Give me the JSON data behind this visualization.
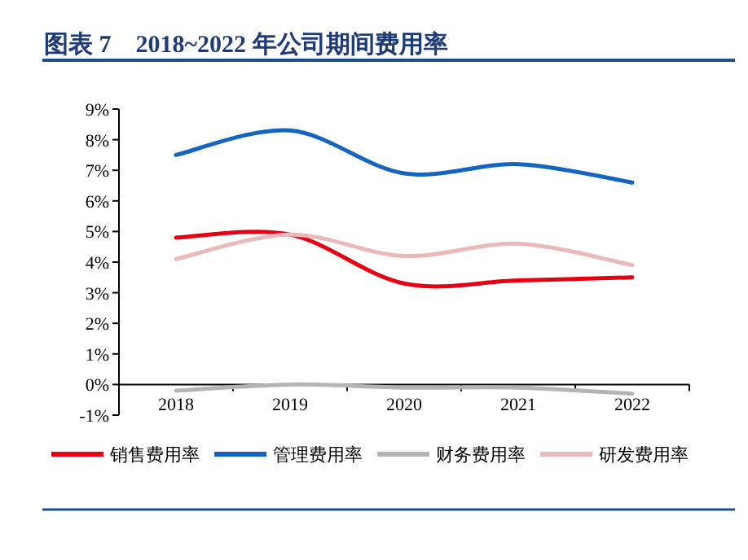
{
  "chart_data": {
    "type": "line",
    "title": "图表 7　2018~2022 年公司期间费用率",
    "categories": [
      "2018",
      "2019",
      "2020",
      "2021",
      "2022"
    ],
    "series": [
      {
        "name": "销售费用率",
        "color": "#e60012",
        "values": [
          4.8,
          4.9,
          3.3,
          3.4,
          3.5
        ]
      },
      {
        "name": "管理费用率",
        "color": "#1565c0",
        "values": [
          7.5,
          8.3,
          6.9,
          7.2,
          6.6
        ]
      },
      {
        "name": "财务费用率",
        "color": "#b4b4b4",
        "values": [
          -0.2,
          0.0,
          -0.1,
          -0.1,
          -0.3
        ]
      },
      {
        "name": "研发费用率",
        "color": "#e9b9bc",
        "values": [
          4.1,
          4.9,
          4.2,
          4.6,
          3.9
        ]
      }
    ],
    "ylim": [
      -1,
      9
    ],
    "yticks": [
      {
        "value": -1,
        "label": "-1%"
      },
      {
        "value": 0,
        "label": "0%"
      },
      {
        "value": 1,
        "label": "1%"
      },
      {
        "value": 2,
        "label": "2%"
      },
      {
        "value": 3,
        "label": "3%"
      },
      {
        "value": 4,
        "label": "4%"
      },
      {
        "value": 5,
        "label": "5%"
      },
      {
        "value": 6,
        "label": "6%"
      },
      {
        "value": 7,
        "label": "7%"
      },
      {
        "value": 8,
        "label": "8%"
      },
      {
        "value": 9,
        "label": "9%"
      }
    ],
    "grid": false,
    "legend": "bottom",
    "line_style": "solid"
  }
}
